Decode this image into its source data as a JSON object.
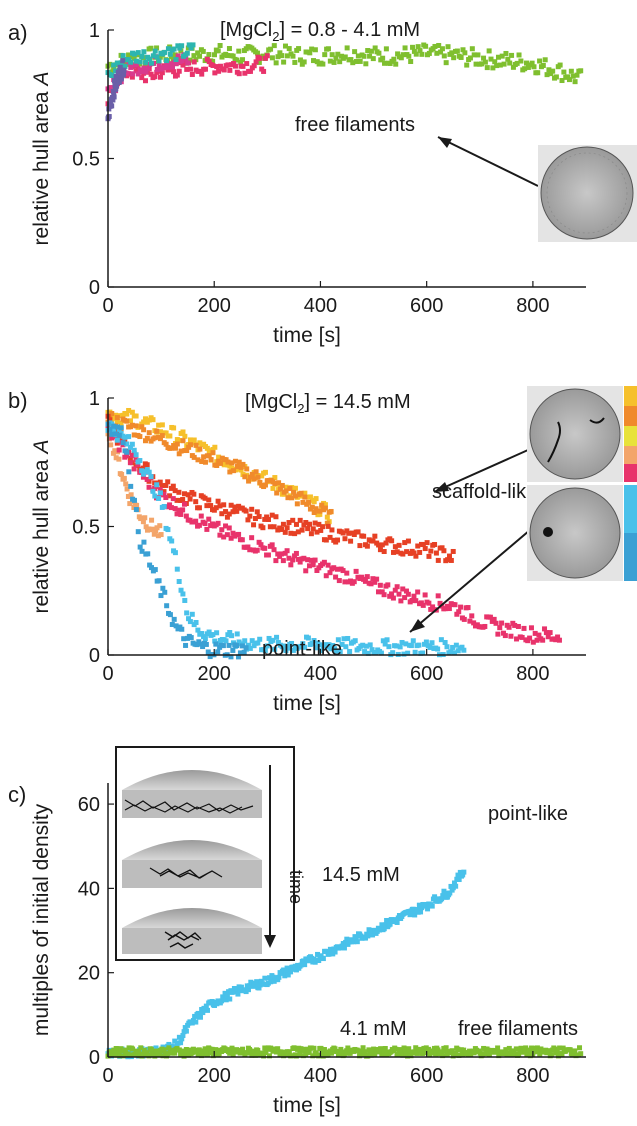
{
  "colors": {
    "green": "#7fbf2f",
    "pink": "#e8336b",
    "magenta": "#d93a8e",
    "orange": "#f08a2b",
    "yellow": "#f6c02b",
    "red": "#e64024",
    "peach": "#f3a56a",
    "light_blue": "#49c1ea",
    "mid_blue": "#3aa0d4",
    "purple": "#6a5fa8",
    "teal": "#2db5b0",
    "axis": "#1a1a1a"
  },
  "panels": {
    "a": {
      "label": "a)",
      "title_pre": "[MgCl",
      "title_sub": "2",
      "title_post": "] = 0.8 - 4.1 mM",
      "annotation": "free filaments",
      "inset_icon": "micrograph-free-filaments"
    },
    "b": {
      "label": "b)",
      "title_pre": "[MgCl",
      "title_sub": "2",
      "title_post": "] = 14.5 mM",
      "annotation_scaffold": "scaffold-like",
      "annotation_point": "point-like",
      "inset_icon_top": "micrograph-scaffold",
      "inset_icon_bottom": "micrograph-point"
    },
    "c": {
      "label": "c)",
      "annotation_14": "14.5 mM",
      "annotation_point": "point-like",
      "annotation_41": "4.1 mM",
      "annotation_free": "free filaments",
      "inset_time": "time",
      "inset_icon": "droplet-contraction-schematic"
    }
  },
  "chart_data": [
    {
      "type": "scatter",
      "panel": "a",
      "xlabel": "time [s]",
      "ylabel": "relative hull area A",
      "xlim": [
        0,
        900
      ],
      "ylim": [
        0,
        1
      ],
      "xticks": [
        0,
        200,
        400,
        600,
        800
      ],
      "yticks": [
        0,
        0.5,
        1
      ],
      "yticklabels": [
        "0",
        "0.5",
        "1"
      ],
      "series": [
        {
          "color_key": "green",
          "x": [
            0,
            50,
            100,
            150,
            200,
            250,
            300,
            350,
            400,
            450,
            500,
            550,
            600,
            650,
            700,
            750,
            800,
            850,
            890
          ],
          "y": [
            0.86,
            0.89,
            0.9,
            0.9,
            0.91,
            0.9,
            0.91,
            0.9,
            0.9,
            0.91,
            0.9,
            0.9,
            0.91,
            0.9,
            0.89,
            0.88,
            0.87,
            0.84,
            0.81
          ]
        },
        {
          "color_key": "pink",
          "x": [
            0,
            20,
            40,
            60,
            80,
            100,
            150,
            200,
            250,
            300
          ],
          "y": [
            0.72,
            0.82,
            0.84,
            0.83,
            0.82,
            0.84,
            0.85,
            0.86,
            0.86,
            0.87
          ]
        },
        {
          "color_key": "magenta",
          "x": [
            0,
            30,
            60,
            90,
            120,
            150
          ],
          "y": [
            0.75,
            0.84,
            0.86,
            0.87,
            0.88,
            0.88
          ]
        },
        {
          "color_key": "teal",
          "x": [
            0,
            20,
            40,
            60,
            80,
            100,
            130,
            160
          ],
          "y": [
            0.82,
            0.87,
            0.89,
            0.9,
            0.9,
            0.91,
            0.91,
            0.92
          ]
        },
        {
          "color_key": "purple",
          "x": [
            0,
            10,
            20,
            30
          ],
          "y": [
            0.66,
            0.76,
            0.82,
            0.86
          ]
        }
      ]
    },
    {
      "type": "scatter",
      "panel": "b",
      "xlabel": "time [s]",
      "ylabel": "relative hull area A",
      "xlim": [
        0,
        900
      ],
      "ylim": [
        0,
        1
      ],
      "xticks": [
        0,
        200,
        400,
        600,
        800
      ],
      "yticks": [
        0,
        0.5,
        1
      ],
      "yticklabels": [
        "0",
        "0.5",
        "1"
      ],
      "series": [
        {
          "color_key": "yellow",
          "x": [
            0,
            50,
            100,
            150,
            200,
            250,
            300,
            350,
            400,
            420
          ],
          "y": [
            0.94,
            0.92,
            0.88,
            0.83,
            0.78,
            0.73,
            0.68,
            0.63,
            0.57,
            0.54
          ]
        },
        {
          "color_key": "orange",
          "x": [
            0,
            50,
            100,
            150,
            200,
            250,
            300,
            350,
            400,
            420
          ],
          "y": [
            0.92,
            0.88,
            0.84,
            0.8,
            0.76,
            0.72,
            0.67,
            0.62,
            0.56,
            0.53
          ]
        },
        {
          "color_key": "peach",
          "x": [
            0,
            20,
            40,
            60,
            80,
            100
          ],
          "y": [
            0.88,
            0.75,
            0.62,
            0.55,
            0.5,
            0.47
          ]
        },
        {
          "color_key": "red",
          "x": [
            0,
            50,
            100,
            150,
            200,
            250,
            300,
            350,
            400,
            450,
            500,
            550,
            600,
            650
          ],
          "y": [
            0.9,
            0.76,
            0.66,
            0.61,
            0.58,
            0.55,
            0.52,
            0.5,
            0.48,
            0.46,
            0.44,
            0.42,
            0.41,
            0.38
          ]
        },
        {
          "color_key": "pink",
          "x": [
            0,
            50,
            100,
            150,
            200,
            250,
            300,
            350,
            400,
            450,
            500,
            550,
            600,
            650,
            700,
            750,
            800,
            850
          ],
          "y": [
            0.88,
            0.74,
            0.62,
            0.55,
            0.49,
            0.45,
            0.41,
            0.37,
            0.34,
            0.31,
            0.27,
            0.24,
            0.21,
            0.19,
            0.13,
            0.1,
            0.08,
            0.07
          ]
        },
        {
          "color_key": "light_blue",
          "x": [
            0,
            50,
            100,
            130,
            150,
            170,
            200,
            250,
            300,
            400,
            500,
            600,
            670
          ],
          "y": [
            0.9,
            0.8,
            0.6,
            0.35,
            0.16,
            0.1,
            0.07,
            0.05,
            0.04,
            0.04,
            0.03,
            0.03,
            0.03
          ]
        },
        {
          "color_key": "mid_blue",
          "x": [
            0,
            30,
            60,
            90,
            110,
            130,
            150,
            180,
            200,
            230,
            260
          ],
          "y": [
            0.9,
            0.85,
            0.45,
            0.3,
            0.2,
            0.1,
            0.05,
            0.03,
            0.02,
            0.02,
            0.02
          ]
        }
      ]
    },
    {
      "type": "scatter",
      "panel": "c",
      "xlabel": "time [s]",
      "ylabel": "multiples of initial density",
      "xlim": [
        0,
        900
      ],
      "ylim": [
        0,
        65
      ],
      "xticks": [
        0,
        200,
        400,
        600,
        800
      ],
      "yticks": [
        0,
        20,
        40,
        60
      ],
      "yticklabels": [
        "0",
        "20",
        "40",
        "60"
      ],
      "series": [
        {
          "color_key": "light_blue",
          "x": [
            0,
            50,
            100,
            130,
            150,
            180,
            200,
            250,
            300,
            350,
            400,
            450,
            500,
            550,
            600,
            640,
            670
          ],
          "y": [
            1,
            1,
            1.5,
            3,
            7,
            11,
            13,
            16,
            18,
            21,
            24,
            27,
            30,
            33,
            36,
            39,
            44
          ]
        },
        {
          "color_key": "green",
          "x": [
            0,
            100,
            200,
            300,
            400,
            500,
            600,
            700,
            800,
            890
          ],
          "y": [
            1.2,
            1.2,
            1.2,
            1.2,
            1.2,
            1.2,
            1.2,
            1.2,
            1.2,
            1.3
          ]
        }
      ]
    }
  ]
}
